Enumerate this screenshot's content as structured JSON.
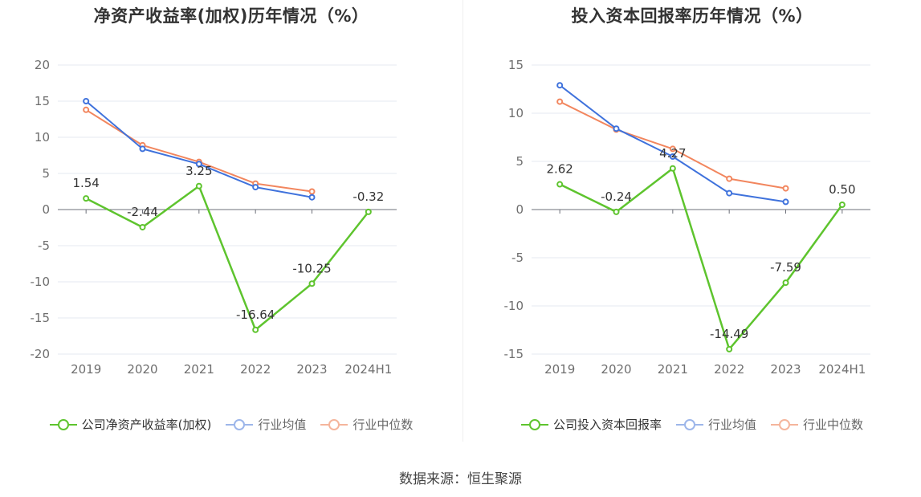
{
  "source_text": "数据来源：恒生聚源",
  "chart_data": [
    {
      "type": "line",
      "title": "净资产收益率(加权)历年情况（%）",
      "categories": [
        "2019",
        "2020",
        "2021",
        "2022",
        "2023",
        "2024H1"
      ],
      "ylim": [
        -20,
        20
      ],
      "yticks": [
        20,
        15,
        10,
        5,
        0,
        -5,
        -10,
        -15,
        -20
      ],
      "grid": true,
      "legend_position": "bottom-center",
      "series": [
        {
          "name": "公司净资产收益率(加权)",
          "color": "#5ec42e",
          "values": [
            1.54,
            -2.44,
            3.25,
            -16.64,
            -10.25,
            -0.32
          ],
          "labels": [
            "1.54",
            "-2.44",
            "3.25",
            "-16.64",
            "-10.25",
            "-0.32"
          ]
        },
        {
          "name": "行业均值",
          "color": "#3f72dc",
          "values": [
            15.0,
            8.4,
            6.3,
            3.1,
            1.7,
            null
          ]
        },
        {
          "name": "行业中位数",
          "color": "#f2865e",
          "values": [
            13.8,
            8.9,
            6.6,
            3.6,
            2.5,
            null
          ]
        }
      ]
    },
    {
      "type": "line",
      "title": "投入资本回报率历年情况（%）",
      "categories": [
        "2019",
        "2020",
        "2021",
        "2022",
        "2023",
        "2024H1"
      ],
      "ylim": [
        -15,
        15
      ],
      "yticks": [
        15,
        10,
        5,
        0,
        -5,
        -10,
        -15
      ],
      "grid": true,
      "legend_position": "bottom-center",
      "series": [
        {
          "name": "公司投入资本回报率",
          "color": "#5ec42e",
          "values": [
            2.62,
            -0.24,
            4.27,
            -14.49,
            -7.59,
            0.5
          ],
          "labels": [
            "2.62",
            "-0.24",
            "4.27",
            "-14.49",
            "-7.59",
            "0.50"
          ]
        },
        {
          "name": "行业均值",
          "color": "#3f72dc",
          "values": [
            12.9,
            8.4,
            5.5,
            1.7,
            0.8,
            null
          ]
        },
        {
          "name": "行业中位数",
          "color": "#f2865e",
          "values": [
            11.2,
            8.3,
            6.3,
            3.2,
            2.2,
            null
          ]
        }
      ]
    }
  ]
}
